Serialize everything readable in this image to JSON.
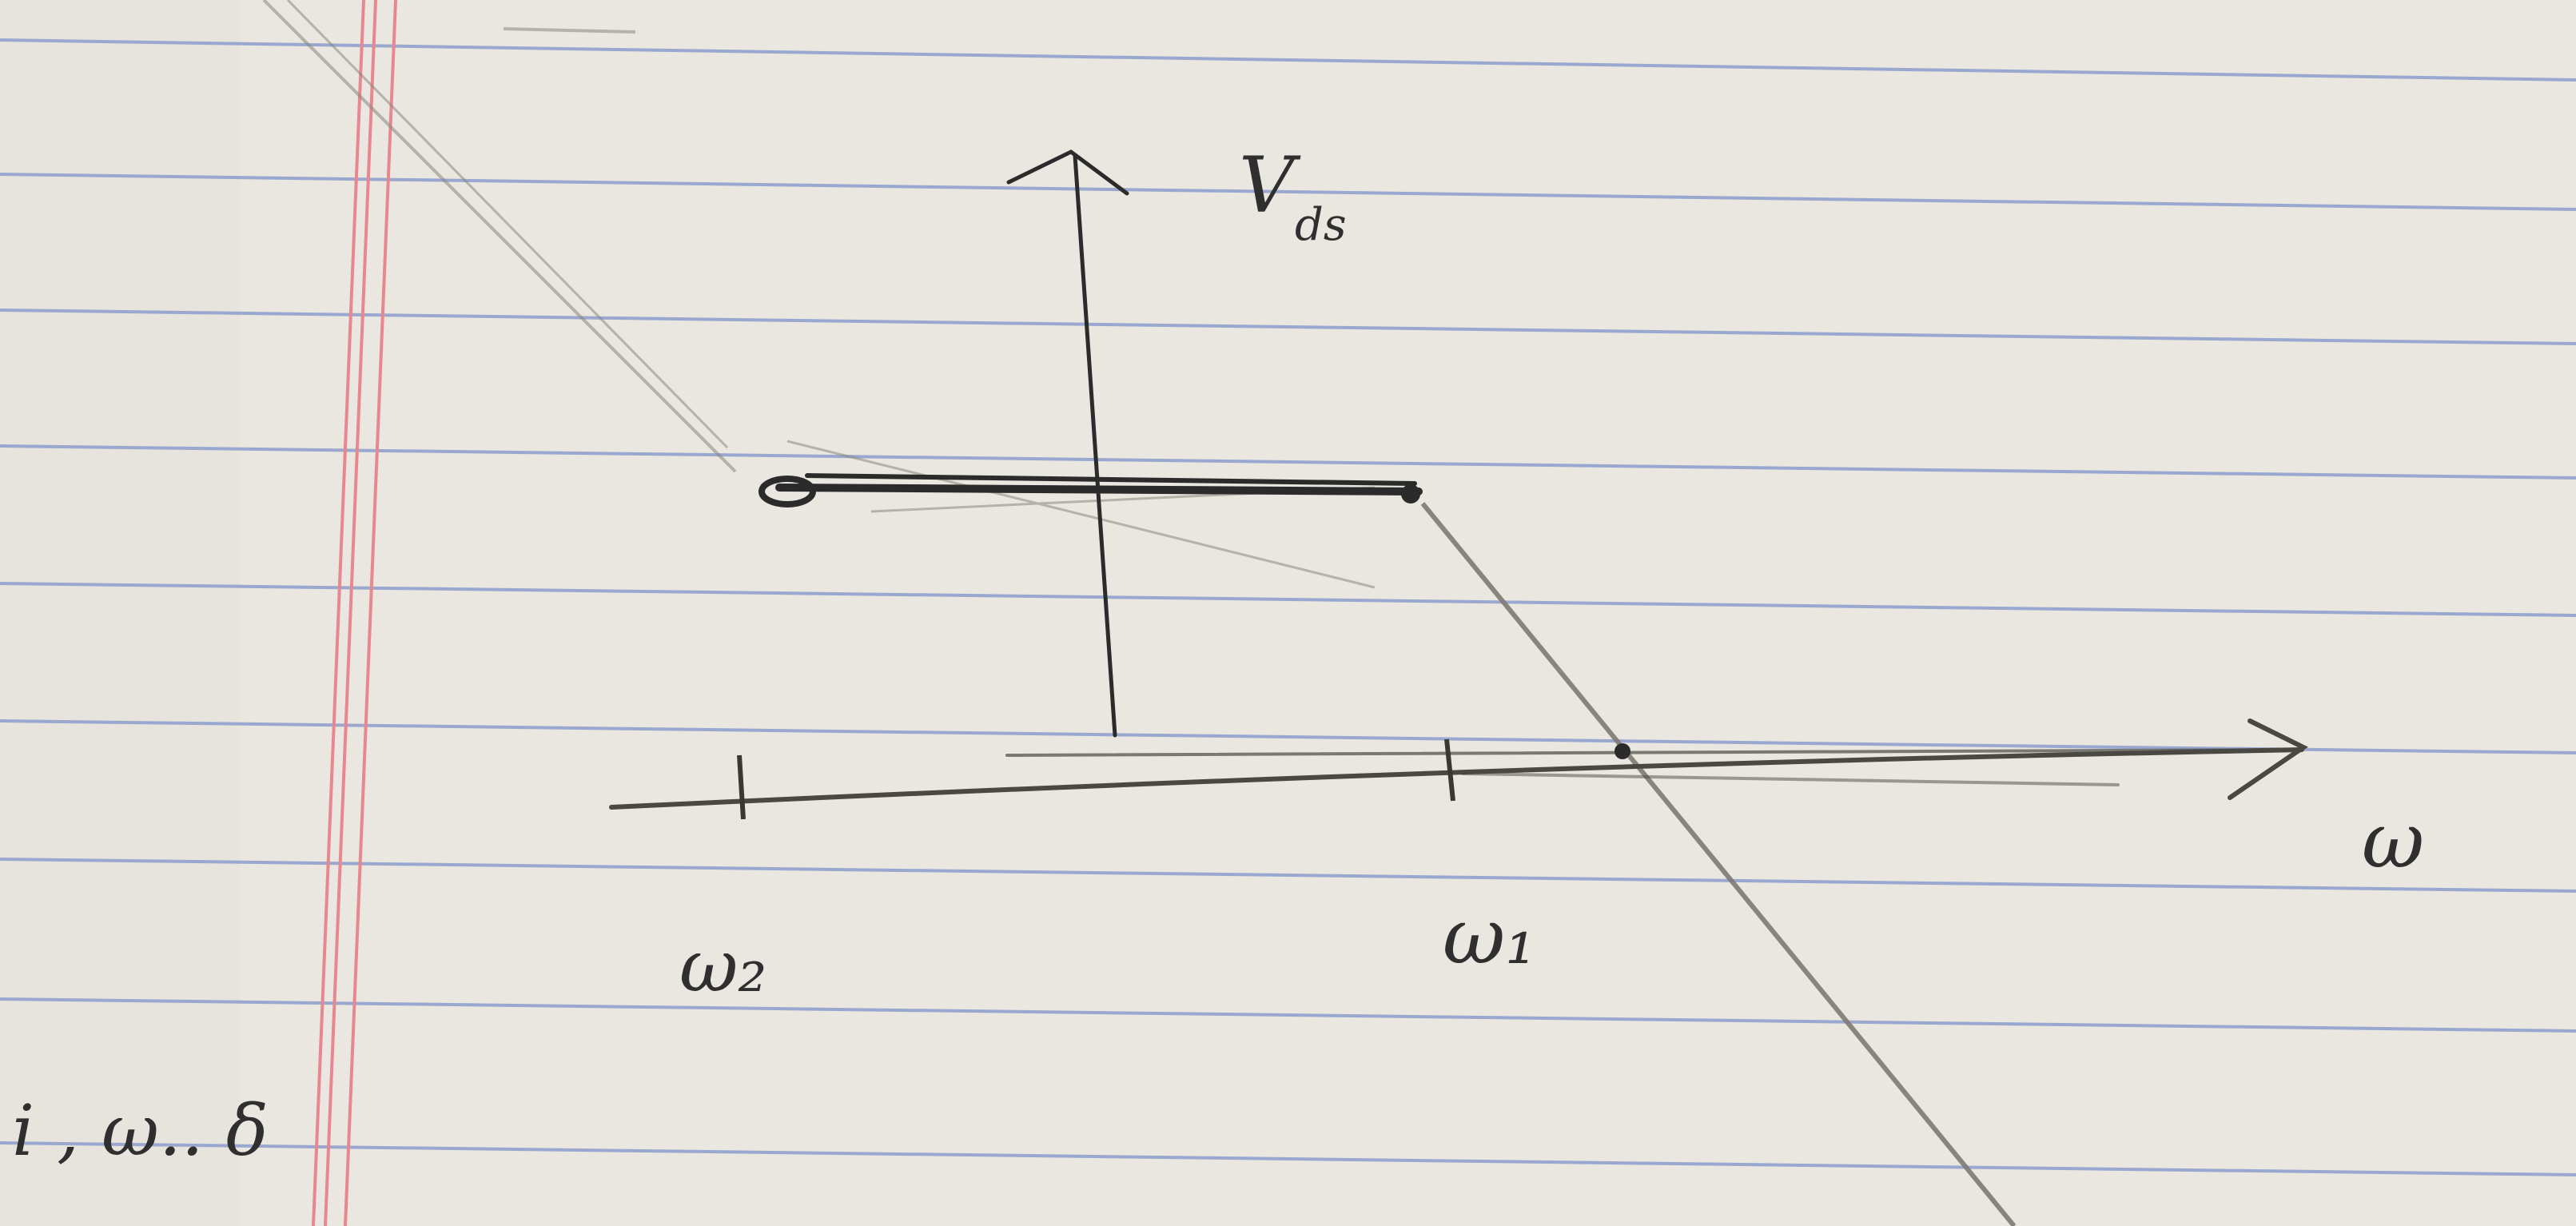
{
  "paper": {
    "background": "#e6e4dc",
    "rule_color": "#8c9ccd",
    "margin_color": "#e8878f",
    "ink_color": "#2b2b2b",
    "pencil_color": "#7d7a72"
  },
  "labels": {
    "y_axis": "V",
    "y_axis_subscript": "ds",
    "x_axis": "ω",
    "tick_left": "ω₂",
    "tick_right": "ω₁",
    "corner_scribble": "i , ω.. δ"
  }
}
